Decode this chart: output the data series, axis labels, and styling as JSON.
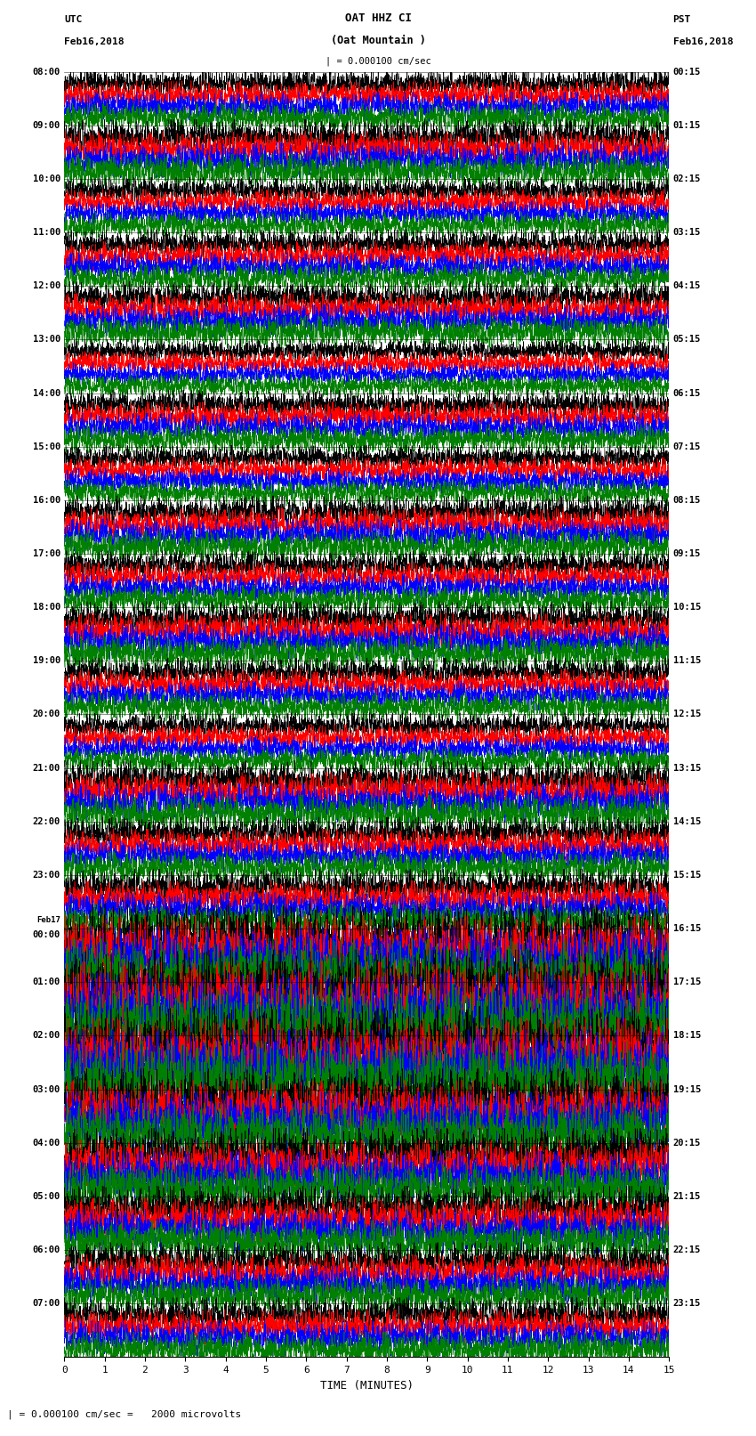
{
  "title_line1": "OAT HHZ CI",
  "title_line2": "(Oat Mountain )",
  "scale_label": "| = 0.000100 cm/sec",
  "left_header_line1": "UTC",
  "left_header_line2": "Feb16,2018",
  "right_header_line1": "PST",
  "right_header_line2": "Feb16,2018",
  "bottom_label": "TIME (MINUTES)",
  "bottom_note": "| = 0.000100 cm/sec =   2000 microvolts",
  "left_times_utc": [
    "08:00",
    "09:00",
    "10:00",
    "11:00",
    "12:00",
    "13:00",
    "14:00",
    "15:00",
    "16:00",
    "17:00",
    "18:00",
    "19:00",
    "20:00",
    "21:00",
    "22:00",
    "23:00",
    "Feb17",
    "01:00",
    "02:00",
    "03:00",
    "04:00",
    "05:00",
    "06:00",
    "07:00"
  ],
  "left_times_utc_extra": [
    "00:00"
  ],
  "right_times_pst": [
    "00:15",
    "01:15",
    "02:15",
    "03:15",
    "04:15",
    "05:15",
    "06:15",
    "07:15",
    "08:15",
    "09:15",
    "10:15",
    "11:15",
    "12:15",
    "13:15",
    "14:15",
    "15:15",
    "16:15",
    "17:15",
    "18:15",
    "19:15",
    "20:15",
    "21:15",
    "22:15",
    "23:15"
  ],
  "x_ticks": [
    0,
    1,
    2,
    3,
    4,
    5,
    6,
    7,
    8,
    9,
    10,
    11,
    12,
    13,
    14,
    15
  ],
  "n_rows": 24,
  "minutes_per_row": 15,
  "colors": [
    "black",
    "red",
    "blue",
    "green"
  ],
  "bg_color": "white",
  "plot_bg": "white",
  "noise_seed": 42
}
